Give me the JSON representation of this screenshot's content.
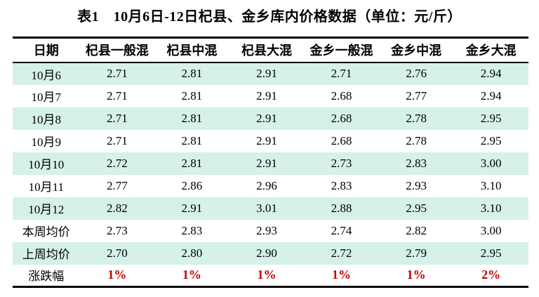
{
  "title": "表1　10月6日-12日杞县、金乡库内价格数据（单位：元/斤）",
  "table": {
    "columns": [
      "日期",
      "杞县一般混",
      "杞县中混",
      "杞县大混",
      "金乡一般混",
      "金乡中混",
      "金乡大混"
    ],
    "rows": [
      {
        "label": "10月6",
        "values": [
          "2.71",
          "2.81",
          "2.91",
          "2.71",
          "2.76",
          "2.94"
        ]
      },
      {
        "label": "10月7",
        "values": [
          "2.71",
          "2.81",
          "2.91",
          "2.68",
          "2.77",
          "2.94"
        ]
      },
      {
        "label": "10月8",
        "values": [
          "2.71",
          "2.81",
          "2.91",
          "2.68",
          "2.78",
          "2.95"
        ]
      },
      {
        "label": "10月9",
        "values": [
          "2.71",
          "2.81",
          "2.91",
          "2.68",
          "2.78",
          "2.95"
        ]
      },
      {
        "label": "10月10",
        "values": [
          "2.72",
          "2.81",
          "2.91",
          "2.73",
          "2.83",
          "3.00"
        ]
      },
      {
        "label": "10月11",
        "values": [
          "2.77",
          "2.86",
          "2.96",
          "2.83",
          "2.93",
          "3.10"
        ]
      },
      {
        "label": "10月12",
        "values": [
          "2.82",
          "2.91",
          "3.01",
          "2.88",
          "2.95",
          "3.10"
        ]
      },
      {
        "label": "本周均价",
        "values": [
          "2.73",
          "2.83",
          "2.93",
          "2.74",
          "2.82",
          "3.00"
        ]
      },
      {
        "label": "上周均价",
        "values": [
          "2.70",
          "2.80",
          "2.90",
          "2.72",
          "2.79",
          "2.95"
        ]
      },
      {
        "label": "涨跌幅",
        "values": [
          "1%",
          "1%",
          "1%",
          "1%",
          "1%",
          "2%"
        ],
        "change_row": true
      }
    ]
  },
  "colors": {
    "stripe": "#d5f1e9",
    "change_text": "#c00000"
  }
}
